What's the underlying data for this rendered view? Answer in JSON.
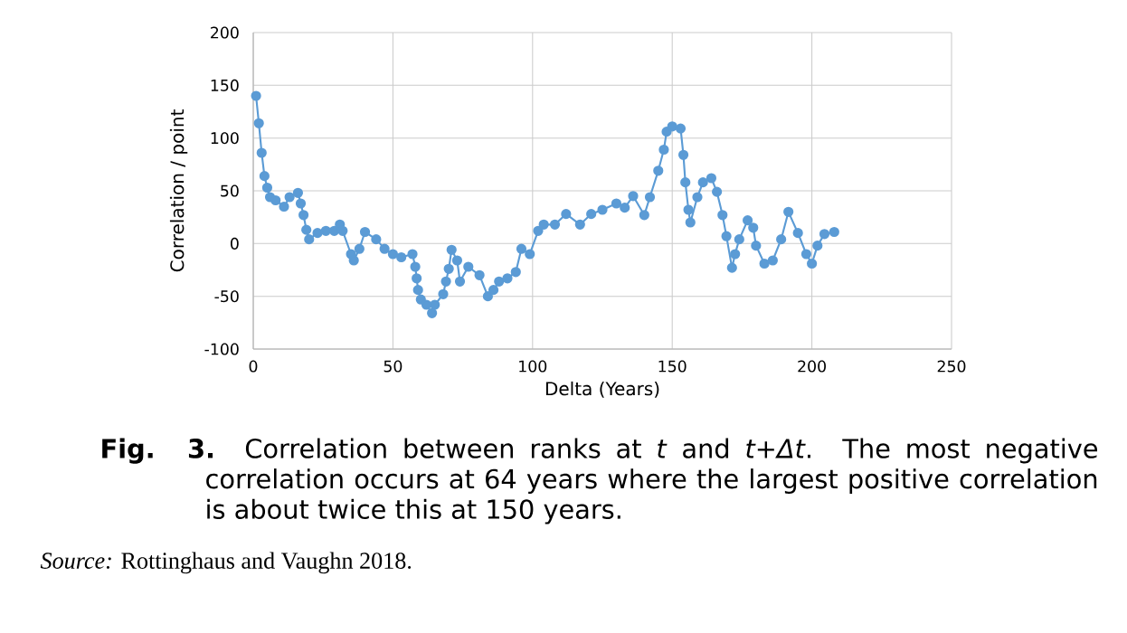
{
  "chart_data": {
    "type": "line",
    "xlabel": "Delta (Years)",
    "ylabel": "Correlation / point",
    "xlim": [
      0,
      250
    ],
    "ylim": [
      -100,
      200
    ],
    "xticks": [
      0,
      50,
      100,
      150,
      200,
      250
    ],
    "yticks": [
      -100,
      -50,
      0,
      50,
      100,
      150,
      200
    ],
    "grid": true,
    "marker": "circle",
    "line_style": "solid",
    "series": [
      {
        "color": "#5b9bd5",
        "x": [
          1,
          2,
          3,
          4,
          5,
          6,
          8,
          11,
          13,
          16,
          17,
          18,
          19,
          20,
          23,
          26,
          29,
          31,
          32,
          35,
          36,
          38,
          40,
          44,
          47,
          50,
          53,
          57,
          58,
          58.5,
          59,
          60,
          62,
          64,
          65,
          68,
          69,
          70,
          71,
          73,
          74,
          77,
          81,
          84,
          86,
          88,
          91,
          94,
          96,
          99,
          102,
          104,
          108,
          112,
          117,
          121,
          125,
          130,
          133,
          136,
          140,
          142,
          145,
          147,
          148,
          150,
          153,
          154,
          154.7,
          155.8,
          156.5,
          159,
          161,
          164,
          166,
          168,
          169.4,
          171.4,
          172.5,
          174,
          177,
          179,
          180,
          183,
          186,
          189,
          191.6,
          195,
          198,
          200,
          202,
          204.5,
          208
        ],
        "values": [
          140,
          114,
          86,
          64,
          53,
          44,
          41,
          35,
          44,
          48,
          38,
          27,
          13,
          4,
          10,
          12,
          12,
          18,
          12,
          -10,
          -16,
          -5,
          11,
          4,
          -5,
          -10,
          -13,
          -10,
          -22,
          -33,
          -44,
          -53,
          -58,
          -66,
          -58,
          -48,
          -36,
          -24,
          -6,
          -16,
          -36,
          -22,
          -30,
          -50,
          -44,
          -36,
          -33,
          -27,
          -5,
          -10,
          12,
          18,
          18,
          28,
          18,
          28,
          32,
          38,
          34,
          45,
          27,
          44,
          69,
          89,
          106,
          111,
          109,
          84,
          58,
          32,
          20,
          44,
          58,
          62,
          49,
          27,
          7,
          -23,
          -10,
          4,
          22,
          15,
          -2,
          -19,
          -16,
          4,
          30,
          10,
          -10,
          -19,
          -2,
          9,
          11
        ]
      }
    ],
    "annotations": [
      "**Fig. 3.** Correlation between ranks at *t* and *t+Δt*. The most negative correlation occurs at 64 years where the largest positive correlation is about twice this at 150 years.",
      "*Source:* Rottinghaus and Vaughn 2018."
    ]
  }
}
